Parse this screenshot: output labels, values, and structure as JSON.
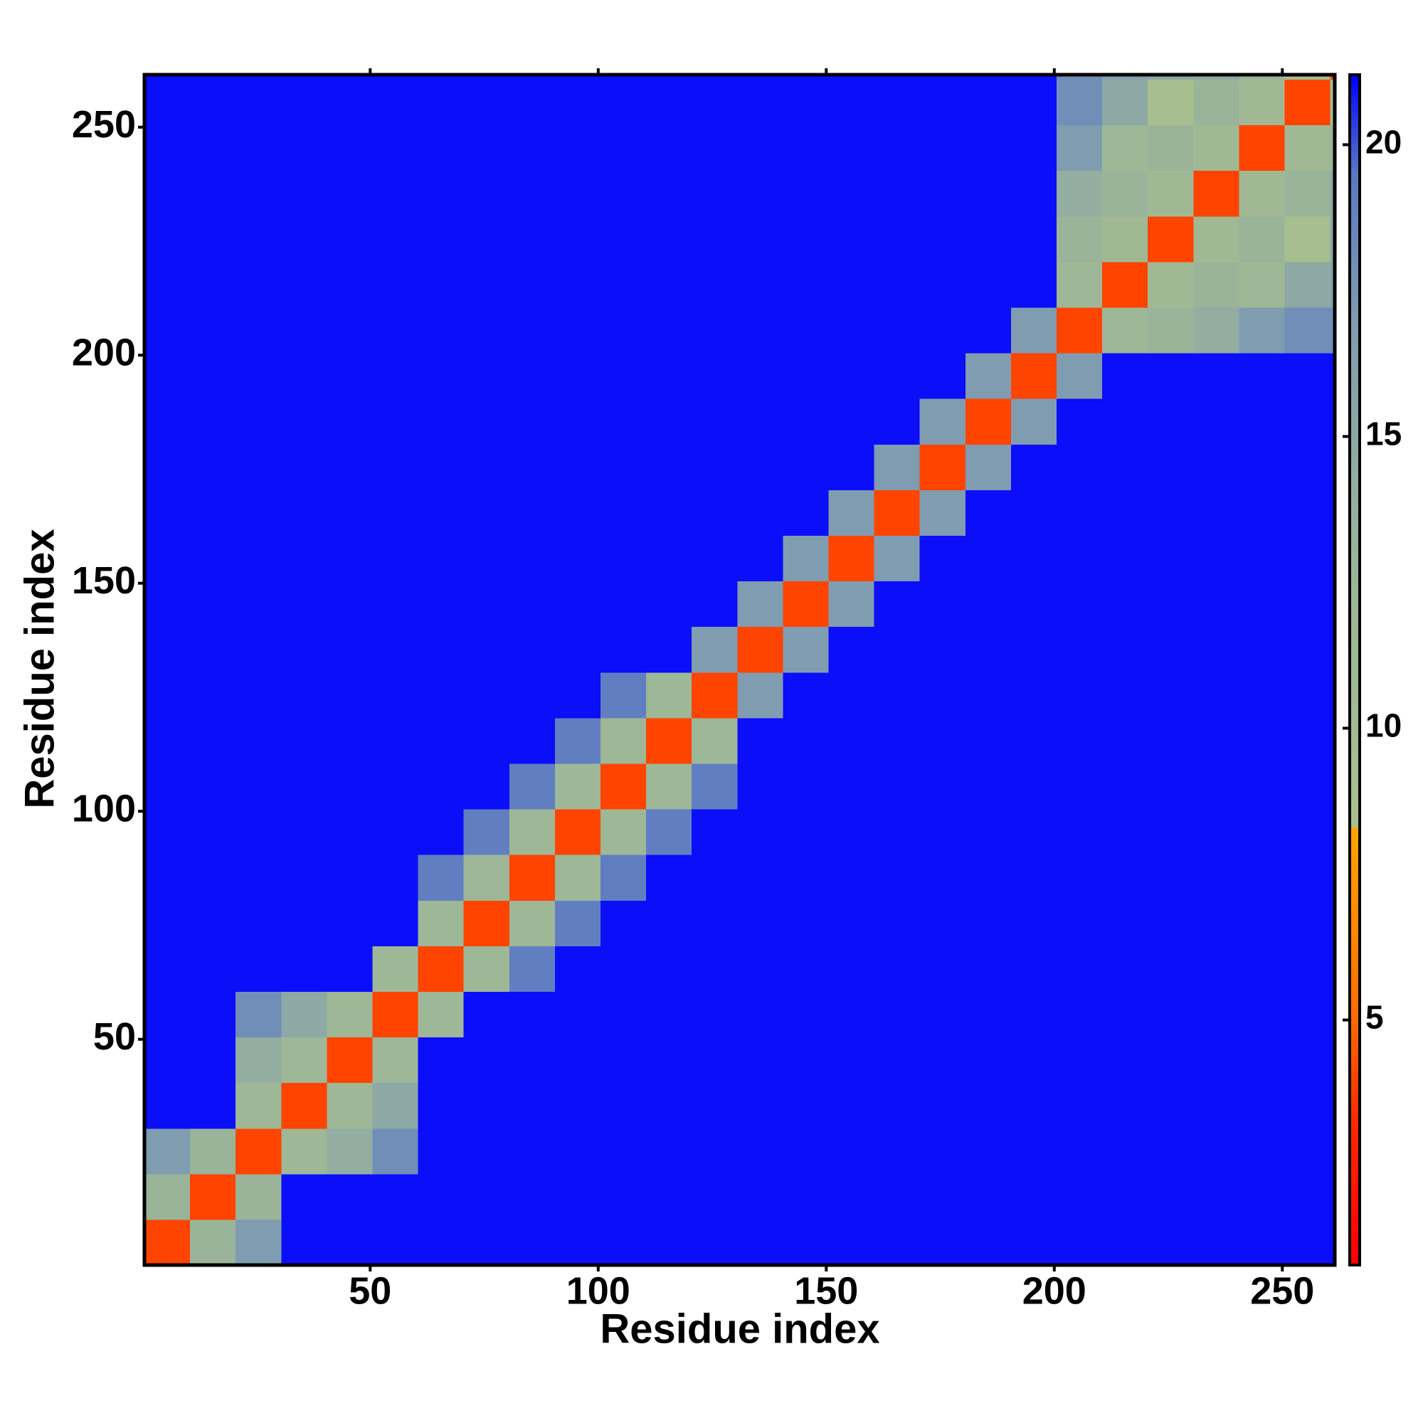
{
  "chart_data": {
    "type": "heatmap",
    "x_label": "Residue index",
    "y_label": "Residue index",
    "xbins": [
      0.5,
      10.5,
      20.5,
      30.5,
      40.5,
      50.5,
      60.5,
      70.5,
      80.5,
      90.5,
      100.5,
      110.5,
      120.5,
      130.5,
      140.5,
      150.5,
      160.5,
      170.5,
      180.5,
      190.5,
      200.5,
      210.5,
      220.5,
      230.5,
      240.5,
      250.5,
      260.5,
      261.5
    ],
    "ybins": [
      0.5,
      10.5,
      20.5,
      30.5,
      40.5,
      50.5,
      60.5,
      70.5,
      80.5,
      90.5,
      100.5,
      110.5,
      120.5,
      130.5,
      140.5,
      150.5,
      160.5,
      170.5,
      180.5,
      190.5,
      200.5,
      210.5,
      220.5,
      230.5,
      240.5,
      250.5,
      260.5,
      261.5
    ],
    "xlim": [
      0.5,
      261.5
    ],
    "ylim": [
      0.5,
      261.5
    ],
    "xticks": [
      50,
      100,
      150,
      200,
      250
    ],
    "yticks": [
      50,
      100,
      150,
      200,
      250
    ],
    "zlim": [
      0.8,
      21.2
    ],
    "zticks": [
      5,
      10,
      15,
      20
    ],
    "colorscale": [
      [
        0.8,
        "#ff0000"
      ],
      [
        3.3,
        "#ff2a00"
      ],
      [
        5,
        "#ff6a00"
      ],
      [
        8.3,
        "#ffa500"
      ],
      [
        8.3,
        "#a9c08c"
      ],
      [
        13,
        "#9ab49a"
      ],
      [
        17,
        "#7f9cb0"
      ],
      [
        19.5,
        "#5a78c4"
      ],
      [
        21.2,
        "#0000ff"
      ]
    ],
    "z": [
      [
        4,
        13,
        17,
        21,
        21,
        21,
        21,
        21,
        21,
        21,
        21,
        21,
        21,
        21,
        21,
        21,
        21,
        21,
        21,
        21,
        21,
        21,
        21,
        21,
        21,
        21,
        21
      ],
      [
        13,
        4,
        13,
        21,
        21,
        21,
        21,
        21,
        21,
        21,
        21,
        21,
        21,
        21,
        21,
        21,
        21,
        21,
        21,
        21,
        21,
        21,
        21,
        21,
        21,
        21,
        21
      ],
      [
        17,
        13,
        4,
        12,
        14,
        18,
        21,
        21,
        21,
        21,
        21,
        21,
        21,
        21,
        21,
        21,
        21,
        21,
        21,
        21,
        21,
        21,
        21,
        21,
        21,
        21,
        21
      ],
      [
        21,
        21,
        12,
        4,
        12,
        15,
        21,
        21,
        21,
        21,
        21,
        21,
        21,
        21,
        21,
        21,
        21,
        21,
        21,
        21,
        21,
        21,
        21,
        21,
        21,
        21,
        21
      ],
      [
        21,
        21,
        14,
        12,
        4,
        12,
        21,
        21,
        21,
        21,
        21,
        21,
        21,
        21,
        21,
        21,
        21,
        21,
        21,
        21,
        21,
        21,
        21,
        21,
        21,
        21,
        21
      ],
      [
        21,
        21,
        18,
        15,
        12,
        4,
        12,
        21,
        21,
        21,
        21,
        21,
        21,
        21,
        21,
        21,
        21,
        21,
        21,
        21,
        21,
        21,
        21,
        21,
        21,
        21,
        21
      ],
      [
        21,
        21,
        21,
        21,
        21,
        12,
        4,
        12,
        19,
        21,
        21,
        21,
        21,
        21,
        21,
        21,
        21,
        21,
        21,
        21,
        21,
        21,
        21,
        21,
        21,
        21,
        21
      ],
      [
        21,
        21,
        21,
        21,
        21,
        21,
        12,
        4,
        12,
        19,
        21,
        21,
        21,
        21,
        21,
        21,
        21,
        21,
        21,
        21,
        21,
        21,
        21,
        21,
        21,
        21,
        21
      ],
      [
        21,
        21,
        21,
        21,
        21,
        21,
        19,
        12,
        4,
        12,
        19,
        21,
        21,
        21,
        21,
        21,
        21,
        21,
        21,
        21,
        21,
        21,
        21,
        21,
        21,
        21,
        21
      ],
      [
        21,
        21,
        21,
        21,
        21,
        21,
        21,
        19,
        12,
        4,
        12,
        19,
        21,
        21,
        21,
        21,
        21,
        21,
        21,
        21,
        21,
        21,
        21,
        21,
        21,
        21,
        21
      ],
      [
        21,
        21,
        21,
        21,
        21,
        21,
        21,
        21,
        19,
        12,
        4,
        12,
        19,
        21,
        21,
        21,
        21,
        21,
        21,
        21,
        21,
        21,
        21,
        21,
        21,
        21,
        21
      ],
      [
        21,
        21,
        21,
        21,
        21,
        21,
        21,
        21,
        21,
        19,
        12,
        4,
        12,
        21,
        21,
        21,
        21,
        21,
        21,
        21,
        21,
        21,
        21,
        21,
        21,
        21,
        21
      ],
      [
        21,
        21,
        21,
        21,
        21,
        21,
        21,
        21,
        21,
        21,
        19,
        12,
        4,
        17,
        21,
        21,
        21,
        21,
        21,
        21,
        21,
        21,
        21,
        21,
        21,
        21,
        21
      ],
      [
        21,
        21,
        21,
        21,
        21,
        21,
        21,
        21,
        21,
        21,
        21,
        21,
        17,
        4,
        17,
        21,
        21,
        21,
        21,
        21,
        21,
        21,
        21,
        21,
        21,
        21,
        21
      ],
      [
        21,
        21,
        21,
        21,
        21,
        21,
        21,
        21,
        21,
        21,
        21,
        21,
        21,
        17,
        4,
        17,
        21,
        21,
        21,
        21,
        21,
        21,
        21,
        21,
        21,
        21,
        21
      ],
      [
        21,
        21,
        21,
        21,
        21,
        21,
        21,
        21,
        21,
        21,
        21,
        21,
        21,
        21,
        17,
        4,
        17,
        21,
        21,
        21,
        21,
        21,
        21,
        21,
        21,
        21,
        21
      ],
      [
        21,
        21,
        21,
        21,
        21,
        21,
        21,
        21,
        21,
        21,
        21,
        21,
        21,
        21,
        21,
        17,
        4,
        17,
        21,
        21,
        21,
        21,
        21,
        21,
        21,
        21,
        21
      ],
      [
        21,
        21,
        21,
        21,
        21,
        21,
        21,
        21,
        21,
        21,
        21,
        21,
        21,
        21,
        21,
        21,
        17,
        4,
        17,
        21,
        21,
        21,
        21,
        21,
        21,
        21,
        21
      ],
      [
        21,
        21,
        21,
        21,
        21,
        21,
        21,
        21,
        21,
        21,
        21,
        21,
        21,
        21,
        21,
        21,
        21,
        17,
        4,
        17,
        21,
        21,
        21,
        21,
        21,
        21,
        21
      ],
      [
        21,
        21,
        21,
        21,
        21,
        21,
        21,
        21,
        21,
        21,
        21,
        21,
        21,
        21,
        21,
        21,
        21,
        21,
        17,
        4,
        17,
        21,
        21,
        21,
        21,
        21,
        21
      ],
      [
        21,
        21,
        21,
        21,
        21,
        21,
        21,
        21,
        21,
        21,
        21,
        21,
        21,
        21,
        21,
        21,
        21,
        21,
        21,
        17,
        4,
        12,
        13,
        14,
        17,
        18,
        18
      ],
      [
        21,
        21,
        21,
        21,
        21,
        21,
        21,
        21,
        21,
        21,
        21,
        21,
        21,
        21,
        21,
        21,
        21,
        21,
        21,
        21,
        12,
        4,
        11,
        13,
        12,
        15,
        16
      ],
      [
        21,
        21,
        21,
        21,
        21,
        21,
        21,
        21,
        21,
        21,
        21,
        21,
        21,
        21,
        21,
        21,
        21,
        21,
        21,
        21,
        13,
        11,
        4,
        11,
        13,
        9,
        15
      ],
      [
        21,
        21,
        21,
        21,
        21,
        21,
        21,
        21,
        21,
        21,
        21,
        21,
        21,
        21,
        21,
        21,
        21,
        21,
        21,
        21,
        14,
        13,
        11,
        4,
        11,
        13,
        15
      ],
      [
        21,
        21,
        21,
        21,
        21,
        21,
        21,
        21,
        21,
        21,
        21,
        21,
        21,
        21,
        21,
        21,
        21,
        21,
        21,
        21,
        17,
        12,
        13,
        11,
        4,
        11,
        13
      ],
      [
        21,
        21,
        21,
        21,
        21,
        21,
        21,
        21,
        21,
        21,
        21,
        21,
        21,
        21,
        21,
        21,
        21,
        21,
        21,
        21,
        18,
        15,
        9,
        13,
        11,
        4,
        10
      ],
      [
        21,
        21,
        21,
        21,
        21,
        21,
        21,
        21,
        21,
        21,
        21,
        21,
        21,
        21,
        21,
        21,
        21,
        21,
        21,
        21,
        18,
        16,
        15,
        15,
        13,
        10,
        4
      ]
    ]
  }
}
